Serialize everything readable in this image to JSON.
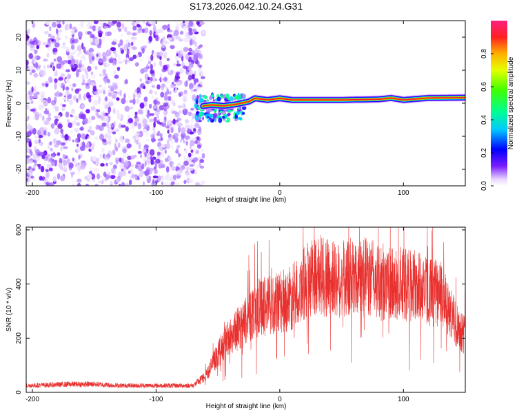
{
  "title": "S173.2026.042.10.24.G31",
  "chart_data": [
    {
      "type": "heatmap",
      "title": "S173.2026.042.10.24.G31",
      "xlabel": "Height of straight line (km)",
      "ylabel": "Frequency (Hz)",
      "xlim": [
        -205,
        150
      ],
      "ylim": [
        -25,
        25
      ],
      "x_ticks": [
        "-200",
        "-100",
        "0",
        "100"
      ],
      "y_ticks": [
        "-20",
        "-10",
        "0",
        "10",
        "20"
      ],
      "colorbar": {
        "label": "Normalized spectral amplitude",
        "range": [
          0,
          1
        ],
        "ticks": [
          "0.0",
          "0.2",
          "0.4",
          "0.6",
          "0.8"
        ]
      },
      "noise_region_x": [
        -205,
        -65
      ],
      "onset_x": -65,
      "peak_frequency_track": {
        "x": [
          -65,
          -55,
          -45,
          -35,
          -25,
          -20,
          -10,
          0,
          10,
          50,
          80,
          90,
          100,
          120,
          150
        ],
        "freq": [
          -1.0,
          -0.5,
          -0.8,
          -0.3,
          0.5,
          1.5,
          1.0,
          1.5,
          1.0,
          1.0,
          1.2,
          1.6,
          1.0,
          1.6,
          1.7
        ]
      }
    },
    {
      "type": "line",
      "xlabel": "Height of straight line (km)",
      "ylabel": "SNR (10 * v/v)",
      "xlim": [
        -205,
        150
      ],
      "ylim": [
        0,
        610
      ],
      "x_ticks": [
        "-200",
        "-100",
        "0",
        "100"
      ],
      "y_ticks": [
        "0",
        "200",
        "400",
        "600"
      ],
      "color": "#e8312f",
      "series": [
        {
          "name": "SNR",
          "x": [
            -205,
            -190,
            -170,
            -150,
            -130,
            -110,
            -90,
            -70,
            -60,
            -50,
            -40,
            -30,
            -20,
            -10,
            0,
            10,
            20,
            30,
            40,
            50,
            60,
            70,
            80,
            90,
            100,
            110,
            120,
            130,
            140,
            150
          ],
          "values": [
            25,
            27,
            30,
            30,
            25,
            25,
            25,
            25,
            60,
            140,
            210,
            250,
            310,
            320,
            330,
            350,
            400,
            440,
            420,
            415,
            425,
            430,
            405,
            395,
            400,
            390,
            375,
            360,
            270,
            210
          ]
        }
      ]
    }
  ]
}
